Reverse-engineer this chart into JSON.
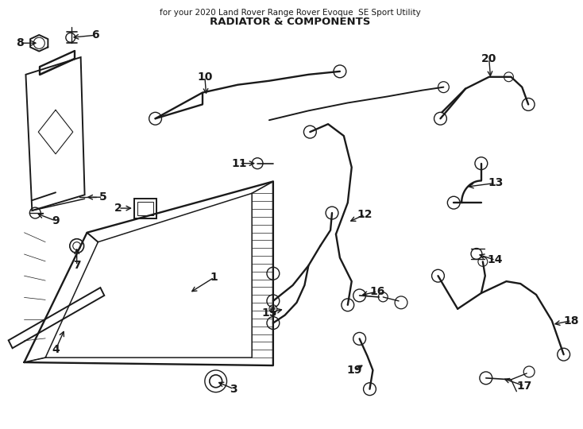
{
  "title": "RADIATOR & COMPONENTS",
  "subtitle": "for your 2020 Land Rover Range Rover Evoque  SE Sport Utility",
  "bg_color": "#ffffff",
  "line_color": "#1a1a1a",
  "lw": 1.4
}
